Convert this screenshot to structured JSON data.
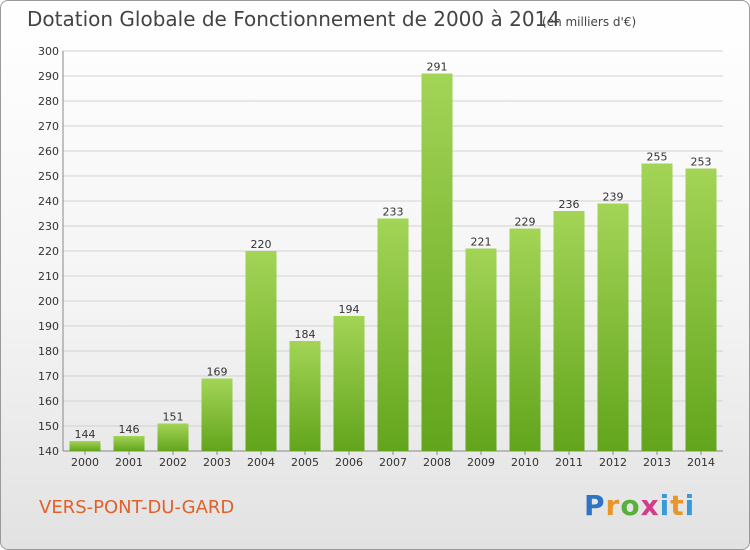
{
  "title": "Dotation Globale de Fonctionnement de 2000 à 2014",
  "unit_note": "(en milliers d'€)",
  "commune": "VERS-PONT-DU-GARD",
  "logo": {
    "text": "Proxiti"
  },
  "colors": {
    "bar_light": "#a3d456",
    "bar_dark": "#62a51c",
    "grid": "#d2d2d2",
    "axis_text": "#333333",
    "commune": "#e0612a"
  },
  "chart_data": {
    "type": "bar",
    "title": "Dotation Globale de Fonctionnement de 2000 à 2014",
    "categories": [
      "2000",
      "2001",
      "2002",
      "2003",
      "2004",
      "2005",
      "2006",
      "2007",
      "2008",
      "2009",
      "2010",
      "2011",
      "2012",
      "2013",
      "2014"
    ],
    "values": [
      144,
      146,
      151,
      169,
      220,
      184,
      194,
      233,
      291,
      221,
      229,
      236,
      239,
      255,
      253
    ],
    "xlabel": "",
    "ylabel": "",
    "ylim": [
      140,
      300
    ],
    "yticks": [
      140,
      150,
      160,
      170,
      180,
      190,
      200,
      210,
      220,
      230,
      240,
      250,
      260,
      270,
      280,
      290,
      300
    ],
    "grid": true,
    "data_labels": true
  }
}
